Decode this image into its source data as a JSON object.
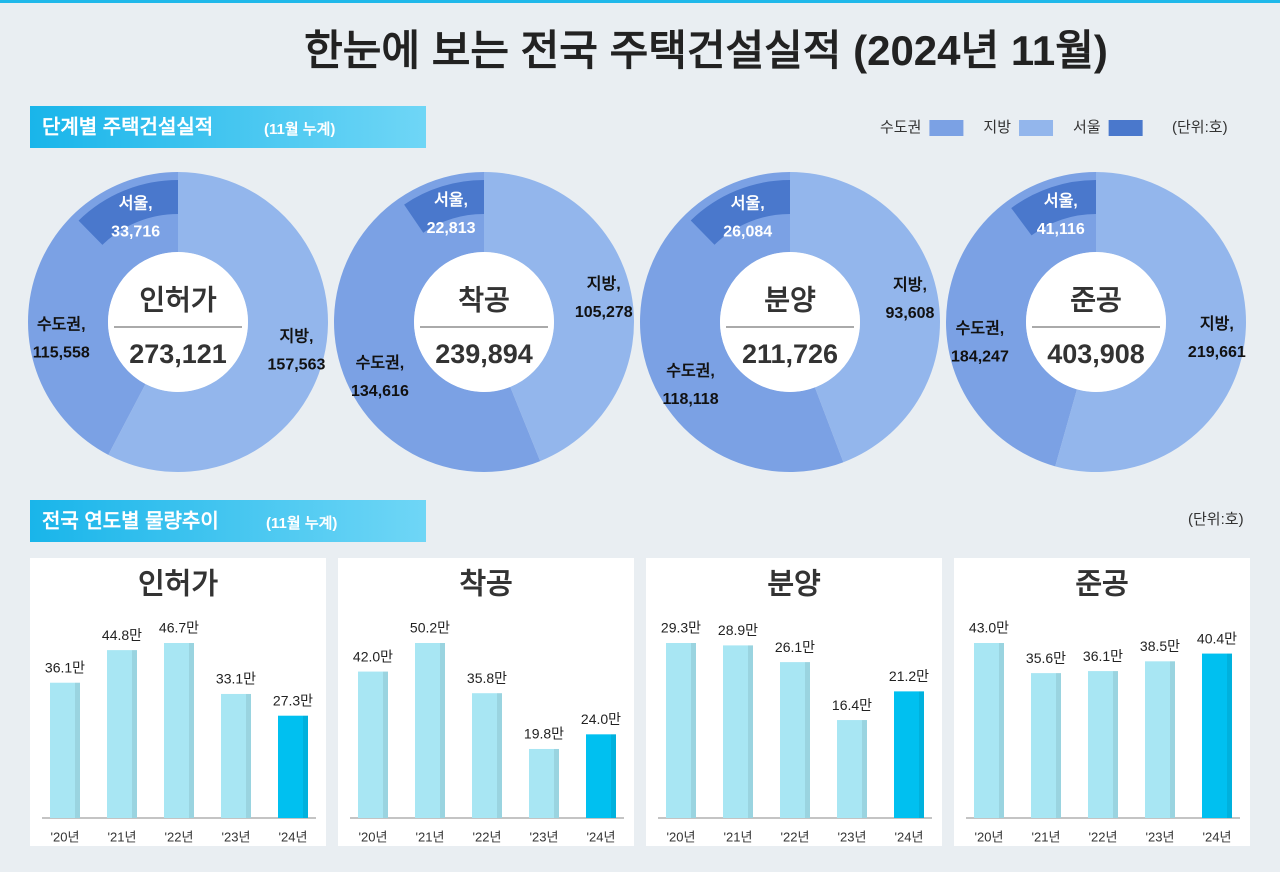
{
  "title": "한눈에 보는 전국 주택건설실적 (2024년 11월)",
  "sections": [
    {
      "title": "단계별 주택건설실적",
      "note": "(11월 누계)",
      "unit": "(단위:호)"
    },
    {
      "title": "전국 연도별 물량추이",
      "note": "(11월 누계)",
      "unit": "(단위:호)"
    }
  ],
  "chart_data": [
    {
      "type": "donut",
      "center_label": "인허가",
      "total": {
        "value": 273121,
        "label": "273,121"
      },
      "categories": [
        "수도권",
        "지방",
        "서울"
      ],
      "slice_labels": [
        "수도권,",
        "지방,",
        "서울,"
      ],
      "values": [
        115558,
        157563,
        33716
      ],
      "value_labels": [
        "115,558",
        "157,563",
        "33,716"
      ],
      "colors": [
        "#7ba1e4",
        "#93b6ec",
        "#4a78cc"
      ]
    },
    {
      "type": "donut",
      "center_label": "착공",
      "total": {
        "value": 239894,
        "label": "239,894"
      },
      "categories": [
        "수도권",
        "지방",
        "서울"
      ],
      "slice_labels": [
        "수도권,",
        "지방,",
        "서울,"
      ],
      "values": [
        134616,
        105278,
        22813
      ],
      "value_labels": [
        "134,616",
        "105,278",
        "22,813"
      ],
      "colors": [
        "#7ba1e4",
        "#93b6ec",
        "#4a78cc"
      ]
    },
    {
      "type": "donut",
      "center_label": "분양",
      "total": {
        "value": 211726,
        "label": "211,726"
      },
      "categories": [
        "수도권",
        "지방",
        "서울"
      ],
      "slice_labels": [
        "수도권,",
        "지방,",
        "서울,"
      ],
      "values": [
        118118,
        93608,
        26084
      ],
      "value_labels": [
        "118,118",
        "93,608",
        "26,084"
      ],
      "colors": [
        "#7ba1e4",
        "#93b6ec",
        "#4a78cc"
      ]
    },
    {
      "type": "donut",
      "center_label": "준공",
      "total": {
        "value": 403908,
        "label": "403,908"
      },
      "categories": [
        "수도권",
        "지방",
        "서울"
      ],
      "slice_labels": [
        "수도권,",
        "지방,",
        "서울,"
      ],
      "values": [
        184247,
        219661,
        41116
      ],
      "value_labels": [
        "184,247",
        "219,661",
        "41,116"
      ],
      "colors": [
        "#7ba1e4",
        "#93b6ec",
        "#4a78cc"
      ]
    },
    {
      "type": "bar",
      "title": "인허가",
      "categories": [
        "'20년",
        "'21년",
        "'22년",
        "'23년",
        "'24년"
      ],
      "values": [
        36.1,
        44.8,
        46.7,
        33.1,
        27.3
      ],
      "value_labels": [
        "36.1만",
        "44.8만",
        "46.7만",
        "33.1만",
        "27.3만"
      ],
      "colors": [
        "#a8e6f3",
        "#a8e6f3",
        "#a8e6f3",
        "#a8e6f3",
        "#00c0f0"
      ]
    },
    {
      "type": "bar",
      "title": "착공",
      "categories": [
        "'20년",
        "'21년",
        "'22년",
        "'23년",
        "'24년"
      ],
      "values": [
        42.0,
        50.2,
        35.8,
        19.8,
        24.0
      ],
      "value_labels": [
        "42.0만",
        "50.2만",
        "35.8만",
        "19.8만",
        "24.0만"
      ],
      "colors": [
        "#a8e6f3",
        "#a8e6f3",
        "#a8e6f3",
        "#a8e6f3",
        "#00c0f0"
      ]
    },
    {
      "type": "bar",
      "title": "분양",
      "categories": [
        "'20년",
        "'21년",
        "'22년",
        "'23년",
        "'24년"
      ],
      "values": [
        29.3,
        28.9,
        26.1,
        16.4,
        21.2
      ],
      "value_labels": [
        "29.3만",
        "28.9만",
        "26.1만",
        "16.4만",
        "21.2만"
      ],
      "colors": [
        "#a8e6f3",
        "#a8e6f3",
        "#a8e6f3",
        "#a8e6f3",
        "#00c0f0"
      ]
    },
    {
      "type": "bar",
      "title": "준공",
      "categories": [
        "'20년",
        "'21년",
        "'22년",
        "'23년",
        "'24년"
      ],
      "values": [
        43.0,
        35.6,
        36.1,
        38.5,
        40.4
      ],
      "value_labels": [
        "43.0만",
        "35.6만",
        "36.1만",
        "38.5만",
        "40.4만"
      ],
      "colors": [
        "#a8e6f3",
        "#a8e6f3",
        "#a8e6f3",
        "#a8e6f3",
        "#00c0f0"
      ]
    }
  ]
}
